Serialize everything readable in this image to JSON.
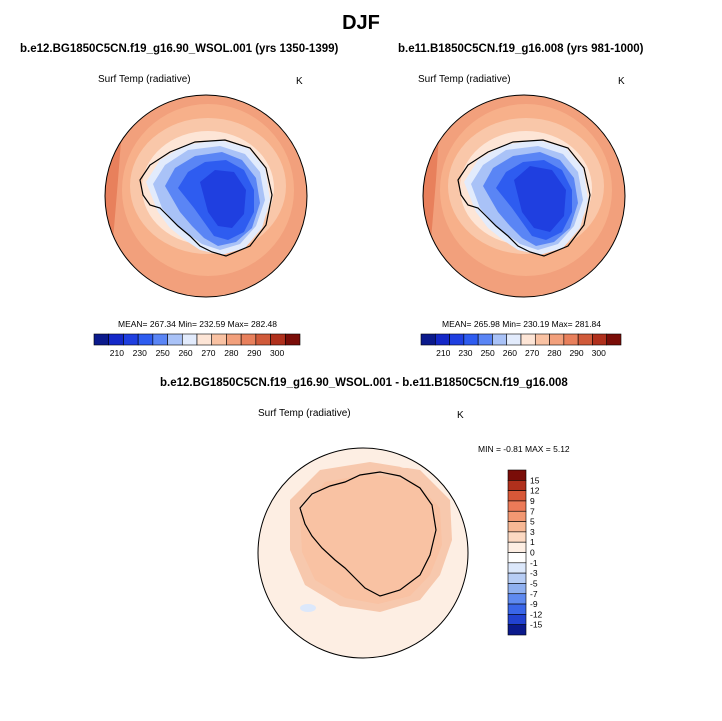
{
  "page": {
    "title": "DJF"
  },
  "panels": [
    {
      "case_title": "b.e12.BG1850C5CN.f19_g16.90_WSOL.001 (yrs 1350-1399)",
      "variable": "Surf Temp (radiative)",
      "units": "K",
      "stats_text": "MEAN= 267.34  Min= 232.59  Max= 282.48"
    },
    {
      "case_title": "b.e11.B1850C5CN.f19_g16.008 (yrs 981-1000)",
      "variable": "Surf Temp (radiative)",
      "units": "K",
      "stats_text": "MEAN= 265.98  Min= 230.19  Max= 281.84"
    },
    {
      "case_title": "b.e12.BG1850C5CN.f19_g16.90_WSOL.001 - b.e11.B1850C5CN.f19_g16.008",
      "variable": "Surf Temp (radiative)",
      "units": "K",
      "stats_text": "MIN =  -0.81 MAX =   5.12"
    }
  ],
  "abs_colorbar": {
    "colors": [
      "#0b1a8c",
      "#1428c8",
      "#1f3fe0",
      "#2e5cf0",
      "#5a85f5",
      "#a9c2f7",
      "#e2ebfc",
      "#fde5d6",
      "#f9c2a3",
      "#f2a07c",
      "#e8805c",
      "#d05a3a",
      "#b0301c",
      "#7a0d08"
    ],
    "labels": [
      "210",
      "230",
      "250",
      "260",
      "270",
      "280",
      "290",
      "300"
    ]
  },
  "diff_colorbar": {
    "colors": [
      "#7a0d08",
      "#b0301c",
      "#d85838",
      "#ec7a58",
      "#f29872",
      "#f7b895",
      "#fcd9c2",
      "#fdeee3",
      "#ffffff",
      "#dce8fb",
      "#b7cdf5",
      "#8fb0f0",
      "#5f8af0",
      "#3a66e8",
      "#2242d0",
      "#0b1a8c"
    ],
    "labels": [
      "15",
      "12",
      "9",
      "7",
      "5",
      "3",
      "1",
      "0",
      "-1",
      "-3",
      "-5",
      "-7",
      "-9",
      "-12",
      "-15"
    ]
  }
}
